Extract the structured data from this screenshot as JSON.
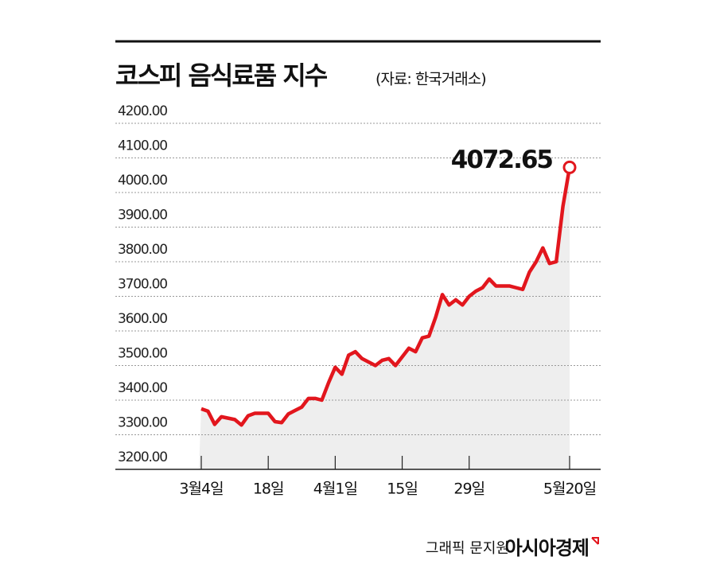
{
  "chart_data": {
    "type": "line",
    "title": "코스피 음식료품 지수",
    "subtitle": "(자료: 한국거래소)",
    "credit": "그래픽 문지원",
    "publisher": "아시아경제",
    "categories": [
      "3월4일",
      null,
      null,
      null,
      null,
      null,
      null,
      null,
      null,
      null,
      "18일",
      null,
      null,
      null,
      null,
      null,
      null,
      null,
      null,
      null,
      "4월1일",
      null,
      null,
      null,
      null,
      null,
      null,
      null,
      null,
      null,
      "15일",
      null,
      null,
      null,
      null,
      null,
      null,
      null,
      null,
      null,
      "29일",
      null,
      null,
      null,
      null,
      null,
      null,
      null,
      null,
      null,
      null,
      null,
      null,
      null,
      null,
      "5월20일"
    ],
    "values": [
      3375,
      3368,
      3330,
      3352,
      3348,
      3344,
      3328,
      3355,
      3362,
      3362,
      3362,
      3338,
      3335,
      3360,
      3370,
      3380,
      3405,
      3405,
      3400,
      3450,
      3495,
      3475,
      3530,
      3540,
      3520,
      3510,
      3500,
      3515,
      3520,
      3500,
      3525,
      3550,
      3540,
      3580,
      3585,
      3640,
      3705,
      3675,
      3690,
      3675,
      3700,
      3715,
      3725,
      3750,
      3730,
      3730,
      3730,
      3725,
      3720,
      3770,
      3800,
      3840,
      3795,
      3800,
      3960,
      4072.65
    ],
    "color": "#e2161d",
    "grid": true,
    "ylim": [
      3200,
      4200
    ],
    "yticks": [
      {
        "value": 3200,
        "label": "3200.00"
      },
      {
        "value": 3300,
        "label": "3300.00"
      },
      {
        "value": 3400,
        "label": "3400.00"
      },
      {
        "value": 3500,
        "label": "3500.00"
      },
      {
        "value": 3600,
        "label": "3600.00"
      },
      {
        "value": 3700,
        "label": "3700.00"
      },
      {
        "value": 3800,
        "label": "3800.00"
      },
      {
        "value": 3900,
        "label": "3900.00"
      },
      {
        "value": 4000,
        "label": "4000.00"
      },
      {
        "value": 4100,
        "label": "4100.00"
      },
      {
        "value": 4200,
        "label": "4200.00"
      }
    ]
  }
}
